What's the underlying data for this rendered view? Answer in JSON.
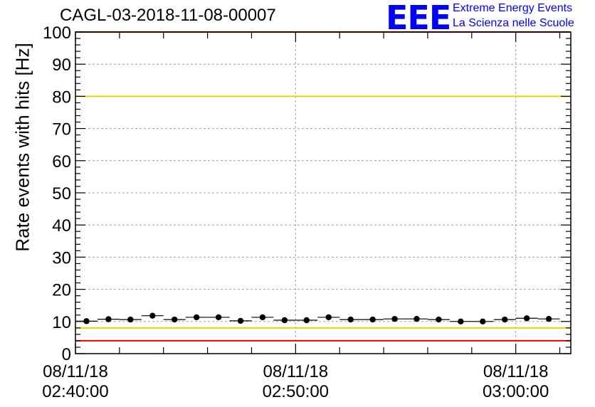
{
  "header": {
    "title": "CAGL-03-2018-11-08-00007",
    "logo_text": "EEE",
    "logo_line1": "Extreme Energy Events",
    "logo_line2": "La Scienza nelle Scuole"
  },
  "chart_data": {
    "type": "scatter",
    "title": "CAGL-03-2018-11-08-00007",
    "xlabel": "",
    "ylabel": "Rate events with hits [Hz]",
    "ylim": [
      0,
      100
    ],
    "yticks": [
      0,
      10,
      20,
      30,
      40,
      50,
      60,
      70,
      80,
      90,
      100
    ],
    "xlim_minutes": [
      0,
      22.5
    ],
    "xticks": [
      {
        "minute": 0,
        "date": "08/11/18",
        "time": "02:40:00"
      },
      {
        "minute": 10,
        "date": "08/11/18",
        "time": "02:50:00"
      },
      {
        "minute": 20,
        "date": "08/11/18",
        "time": "03:00:00"
      }
    ],
    "grid": true,
    "bin_width_minutes": 1,
    "series": [
      {
        "x_minutes": [
          0.5,
          1.5,
          2.5,
          3.5,
          4.5,
          5.5,
          6.5,
          7.5,
          8.5,
          9.5,
          10.5,
          11.5,
          12.5,
          13.5,
          14.5,
          15.5,
          16.5,
          17.5,
          18.5,
          19.5,
          20.5,
          21.5
        ],
        "values": [
          10.1,
          10.7,
          10.6,
          11.8,
          10.6,
          11.3,
          11.3,
          10.2,
          11.3,
          10.4,
          10.4,
          11.3,
          10.6,
          10.6,
          10.8,
          10.8,
          10.6,
          10.0,
          10.0,
          10.6,
          11.0,
          10.8
        ]
      }
    ],
    "reference_lines": [
      {
        "value": 100,
        "color": "#ff0000"
      },
      {
        "value": 80,
        "color": "#e8d400"
      },
      {
        "value": 8,
        "color": "#e8d400"
      },
      {
        "value": 4,
        "color": "#ff0000"
      }
    ],
    "colors": {
      "marker": "#000000",
      "frame": "#000000",
      "grid": "#a0a0a0"
    }
  }
}
